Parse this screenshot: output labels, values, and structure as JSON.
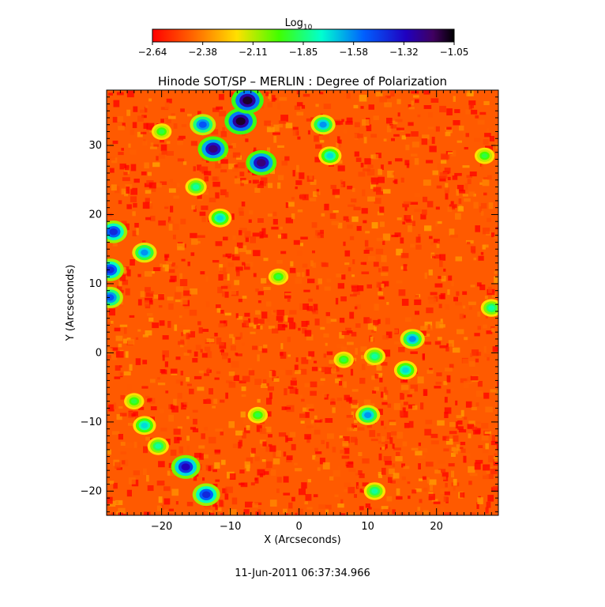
{
  "chart_data": {
    "type": "heatmap",
    "title": "Hinode SOT/SP – MERLIN : Degree of Polarization",
    "xlabel": "X (Arcseconds)",
    "ylabel": "Y (Arcseconds)",
    "xlim": [
      -28,
      29
    ],
    "ylim": [
      -23.5,
      38
    ],
    "xticks": [
      -20,
      -10,
      0,
      10,
      20
    ],
    "yticks": [
      -20,
      -10,
      0,
      10,
      20,
      30
    ],
    "colorbar": {
      "title_base": "Log",
      "title_sub": "10",
      "range": [
        -2.64,
        -1.05
      ],
      "ticks": [
        "−2.64",
        "−2.38",
        "−2.11",
        "−1.85",
        "−1.58",
        "−1.32",
        "−1.05"
      ],
      "colormap": "rainbow: red → orange → yellow → green → cyan → blue → purple → black"
    },
    "grid": false,
    "background_level": -2.5,
    "blobs": [
      {
        "x": -12.5,
        "y": 29.5,
        "value": -1.2
      },
      {
        "x": -8.5,
        "y": 33.5,
        "value": -1.1
      },
      {
        "x": -7.5,
        "y": 36.5,
        "value": -1.1
      },
      {
        "x": -5.5,
        "y": 27.5,
        "value": -1.2
      },
      {
        "x": -14,
        "y": 33,
        "value": -1.5
      },
      {
        "x": 3.5,
        "y": 33,
        "value": -1.6
      },
      {
        "x": 4.5,
        "y": 28.5,
        "value": -1.7
      },
      {
        "x": -15,
        "y": 24,
        "value": -1.8
      },
      {
        "x": -11.5,
        "y": 19.5,
        "value": -1.7
      },
      {
        "x": -27,
        "y": 17.5,
        "value": -1.4
      },
      {
        "x": -27.5,
        "y": 12,
        "value": -1.4
      },
      {
        "x": -27.5,
        "y": 8,
        "value": -1.5
      },
      {
        "x": -22.5,
        "y": 14.5,
        "value": -1.6
      },
      {
        "x": -20,
        "y": 32,
        "value": -1.9
      },
      {
        "x": -3,
        "y": 11,
        "value": -1.9
      },
      {
        "x": 16.5,
        "y": 2,
        "value": -1.6
      },
      {
        "x": 15.5,
        "y": -2.5,
        "value": -1.7
      },
      {
        "x": 11,
        "y": -0.5,
        "value": -1.8
      },
      {
        "x": 10,
        "y": -9,
        "value": -1.6
      },
      {
        "x": 28,
        "y": 6.5,
        "value": -1.8
      },
      {
        "x": 27,
        "y": 28.5,
        "value": -1.9
      },
      {
        "x": -22.5,
        "y": -10.5,
        "value": -1.7
      },
      {
        "x": -20.5,
        "y": -13.5,
        "value": -1.8
      },
      {
        "x": -16.5,
        "y": -16.5,
        "value": -1.3
      },
      {
        "x": -13.5,
        "y": -20.5,
        "value": -1.4
      },
      {
        "x": -24,
        "y": -7,
        "value": -1.9
      },
      {
        "x": 11,
        "y": -20,
        "value": -1.8
      },
      {
        "x": -6,
        "y": -9,
        "value": -1.9
      },
      {
        "x": 6.5,
        "y": -1,
        "value": -1.9
      }
    ]
  },
  "timestamp": "11-Jun-2011 06:37:34.966"
}
